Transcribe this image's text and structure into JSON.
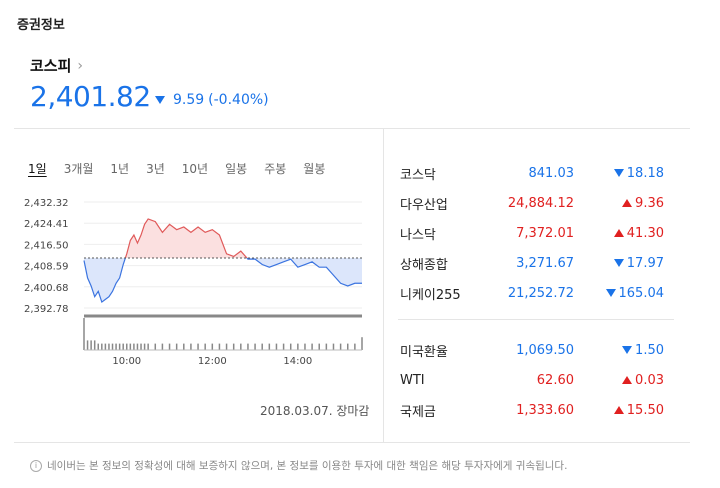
{
  "section": {
    "title": "증권정보"
  },
  "index": {
    "name": "코스피",
    "value": "2,401.82",
    "change": "9.59",
    "change_pct": "(-0.40%)",
    "direction": "down"
  },
  "tabs": [
    "1일",
    "3개월",
    "1년",
    "3년",
    "10년",
    "일봉",
    "주봉",
    "월봉"
  ],
  "chart_data": {
    "type": "area",
    "y_ticks": [
      "2,432.32",
      "2,424.41",
      "2,416.50",
      "2,408.59",
      "2,400.68",
      "2,392.78"
    ],
    "ylim": [
      2392.78,
      2432.32
    ],
    "baseline": 2411.41,
    "x_ticks": [
      "10:00",
      "12:00",
      "14:00"
    ],
    "x_range_minutes": [
      540,
      930
    ],
    "x_tick_minutes": [
      600,
      720,
      840
    ],
    "series": [
      {
        "x": [
          540,
          545,
          550,
          555,
          560,
          565,
          570,
          575,
          580,
          585,
          590,
          595,
          600,
          605,
          610,
          615,
          620,
          625,
          630,
          640,
          650,
          660,
          670,
          680,
          690,
          700,
          710,
          720,
          730,
          740,
          750,
          760,
          770,
          780,
          790,
          800,
          810,
          820,
          830,
          840,
          850,
          860,
          870,
          880,
          890,
          900,
          910,
          920,
          930
        ],
        "y": [
          2410.5,
          2404,
          2401,
          2397,
          2399,
          2395,
          2396,
          2397,
          2399,
          2402,
          2404,
          2409,
          2413,
          2418,
          2420,
          2417,
          2420,
          2424,
          2426,
          2425,
          2421,
          2424,
          2422,
          2423,
          2421,
          2423,
          2421,
          2422,
          2420,
          2413,
          2412,
          2414,
          2411,
          2411,
          2409,
          2408,
          2409,
          2410,
          2411,
          2408,
          2409,
          2410,
          2408,
          2408,
          2405,
          2402,
          2401,
          2402,
          2402
        ]
      }
    ],
    "volume": [
      10,
      3,
      3,
      3,
      2,
      2,
      2,
      2,
      2,
      2,
      2,
      2,
      2,
      2,
      2,
      2,
      2,
      2,
      2,
      2,
      2,
      2,
      2,
      2,
      2,
      2,
      2,
      2,
      2,
      2,
      2,
      2,
      2,
      2,
      2,
      2,
      2,
      2,
      2,
      2,
      2,
      2,
      2,
      2,
      2,
      2,
      2,
      2,
      4
    ],
    "colors": {
      "up": "#e05a5a",
      "up_fill": "#fbe0e0",
      "down": "#3b74e0",
      "down_fill": "#dce6fb",
      "baseline": "#555"
    }
  },
  "date_label": "2018.03.07. 장마감",
  "markets": [
    {
      "name": "코스닥",
      "value": "841.03",
      "change": "18.18",
      "dir": "down"
    },
    {
      "name": "다우산업",
      "value": "24,884.12",
      "change": "9.36",
      "dir": "up"
    },
    {
      "name": "나스닥",
      "value": "7,372.01",
      "change": "41.30",
      "dir": "up"
    },
    {
      "name": "상해종합",
      "value": "3,271.67",
      "change": "17.97",
      "dir": "down"
    },
    {
      "name": "니케이255",
      "value": "21,252.72",
      "change": "165.04",
      "dir": "down"
    }
  ],
  "fx": [
    {
      "name": "미국환율",
      "value": "1,069.50",
      "change": "1.50",
      "dir": "down"
    },
    {
      "name": "WTI",
      "value": "62.60",
      "change": "0.03",
      "dir": "up"
    },
    {
      "name": "국제금",
      "value": "1,333.60",
      "change": "15.50",
      "dir": "up"
    }
  ],
  "notice": "네이버는 본 정보의 정확성에 대해 보증하지 않으며, 본 정보를 이용한 투자에 대한 책임은 해당 투자자에게 귀속됩니다.",
  "icons": {
    "info": "i"
  }
}
